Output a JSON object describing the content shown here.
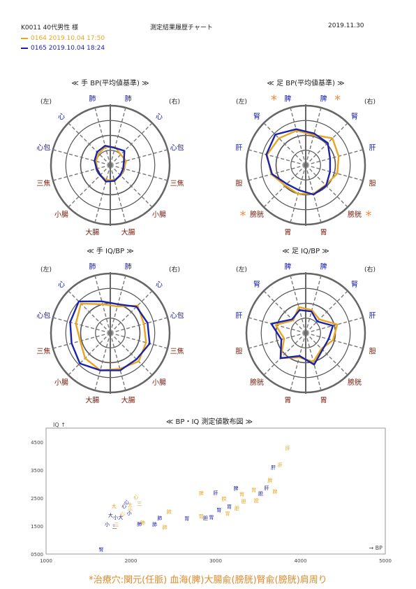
{
  "header": {
    "id_label": "K0011 40代男性 様",
    "title": "測定結果履歴チャート",
    "date": "2019.11.30"
  },
  "legend": [
    {
      "text": "0164 2019.10.04 17:50",
      "color": "#e8a521"
    },
    {
      "text": "0165 2019.10.04 18:24",
      "color": "#1b23a8"
    }
  ],
  "colors": {
    "orange": "#e8a521",
    "blue": "#1b23a8",
    "red": "#7a1a0a",
    "star": "#f08a3c"
  },
  "chart_data": [
    {
      "type": "radar",
      "title": "≪ 手 BP(平均値基準) ≫",
      "side_left": "(左)",
      "side_right": "(右)",
      "axes": [
        "肺",
        "心",
        "心包",
        "三焦",
        "小腸",
        "大腸",
        "大腸",
        "小腸",
        "三焦",
        "心包",
        "心",
        "肺"
      ],
      "label_colors": [
        "blue",
        "blue",
        "blue",
        "red",
        "red",
        "red",
        "red",
        "red",
        "red",
        "blue",
        "blue",
        "blue"
      ],
      "ring_max": 4,
      "series": [
        {
          "color": "orange",
          "values": [
            1.25,
            1.1,
            1.0,
            0.9,
            0.95,
            1.05,
            1.05,
            1.0,
            0.95,
            1.1,
            1.0,
            1.25
          ]
        },
        {
          "color": "blue",
          "values": [
            1.35,
            1.25,
            1.1,
            0.95,
            0.95,
            1.15,
            1.1,
            0.95,
            0.9,
            0.95,
            1.35,
            1.2
          ]
        }
      ]
    },
    {
      "type": "radar",
      "title": "≪ 足 BP(平均値基準) ≫",
      "side_left": "(左)",
      "side_right": "(右)",
      "axes": [
        "脾",
        "腎",
        "肝",
        "胆",
        "膀胱",
        "胃",
        "胃",
        "膀胱",
        "胆",
        "肝",
        "腎",
        "脾"
      ],
      "label_colors": [
        "blue",
        "blue",
        "blue",
        "red",
        "red",
        "red",
        "red",
        "red",
        "red",
        "blue",
        "blue",
        "blue"
      ],
      "starred": [
        0,
        4,
        7,
        11
      ],
      "ring_max": 4,
      "series": [
        {
          "color": "orange",
          "values": [
            2.4,
            2.55,
            2.7,
            2.4,
            1.95,
            2.0,
            2.0,
            1.9,
            2.2,
            2.3,
            2.55,
            2.1
          ]
        },
        {
          "color": "blue",
          "values": [
            2.5,
            2.9,
            2.75,
            2.35,
            1.8,
            1.75,
            2.05,
            1.95,
            1.7,
            1.7,
            2.1,
            2.2
          ]
        }
      ]
    },
    {
      "type": "radar",
      "title": "≪ 手 IQ/BP ≫",
      "side_left": "(左)",
      "side_right": "(右)",
      "axes": [
        "肺",
        "心",
        "心包",
        "三焦",
        "小腸",
        "大腸",
        "大腸",
        "小腸",
        "三焦",
        "心包",
        "心",
        "肺"
      ],
      "label_colors": [
        "blue",
        "blue",
        "blue",
        "red",
        "red",
        "red",
        "red",
        "red",
        "red",
        "blue",
        "blue",
        "blue"
      ],
      "ring_max": 4,
      "series": [
        {
          "color": "orange",
          "values": [
            2.0,
            2.8,
            2.4,
            2.1,
            2.4,
            2.6,
            2.5,
            2.7,
            2.5,
            2.35,
            2.6,
            1.85
          ]
        },
        {
          "color": "blue",
          "values": [
            2.2,
            3.0,
            2.8,
            2.7,
            2.9,
            2.6,
            2.6,
            2.5,
            2.75,
            2.6,
            2.5,
            2.0
          ]
        }
      ]
    },
    {
      "type": "radar",
      "title": "≪ 足 IQ/BP ≫",
      "side_left": "(左)",
      "side_right": "(右)",
      "axes": [
        "脾",
        "腎",
        "肝",
        "胆",
        "膀胱",
        "胃",
        "胃",
        "膀胱",
        "胆",
        "肝",
        "腎",
        "脾"
      ],
      "label_colors": [
        "blue",
        "blue",
        "blue",
        "red",
        "red",
        "red",
        "red",
        "red",
        "red",
        "blue",
        "blue",
        "blue"
      ],
      "ring_max": 4,
      "series": [
        {
          "color": "orange",
          "values": [
            1.8,
            1.2,
            2.1,
            1.5,
            2.4,
            1.7,
            2.0,
            1.5,
            1.9,
            2.2,
            1.3,
            1.6
          ]
        },
        {
          "color": "blue",
          "values": [
            1.6,
            1.3,
            2.4,
            1.7,
            2.4,
            1.6,
            2.2,
            1.6,
            1.6,
            1.9,
            1.1,
            1.5
          ]
        }
      ]
    },
    {
      "type": "scatter",
      "title": "≪ BP・IQ 測定値散布図 ≫",
      "xlabel": "→ BP",
      "ylabel": "IQ ↑",
      "xlim": [
        1000,
        5000
      ],
      "ylim": [
        500,
        5000
      ],
      "xticks": [
        "1000",
        "2000",
        "3000",
        "4000",
        "5000"
      ],
      "yticks": [
        "0500",
        "1500",
        "2500",
        "3500",
        "4500"
      ],
      "points": [
        {
          "label": "肝",
          "x": 3850,
          "y": 4300,
          "color": "orange"
        },
        {
          "label": "肝",
          "x": 3760,
          "y": 3700,
          "color": "orange"
        },
        {
          "label": "肝",
          "x": 3680,
          "y": 3610,
          "color": "blue"
        },
        {
          "label": "脾",
          "x": 3640,
          "y": 3150,
          "color": "orange"
        },
        {
          "label": "肝",
          "x": 3600,
          "y": 2880,
          "color": "blue"
        },
        {
          "label": "脾",
          "x": 3700,
          "y": 2750,
          "color": "orange"
        },
        {
          "label": "胆",
          "x": 3530,
          "y": 2680,
          "color": "blue"
        },
        {
          "label": "胃",
          "x": 3450,
          "y": 2800,
          "color": "orange"
        },
        {
          "label": "脾",
          "x": 3240,
          "y": 2860,
          "color": "blue"
        },
        {
          "label": "腎",
          "x": 3310,
          "y": 2650,
          "color": "orange"
        },
        {
          "label": "膀",
          "x": 3480,
          "y": 2420,
          "color": "orange"
        },
        {
          "label": "胆",
          "x": 3330,
          "y": 2400,
          "color": "orange"
        },
        {
          "label": "膀",
          "x": 3100,
          "y": 2490,
          "color": "orange"
        },
        {
          "label": "胃",
          "x": 3160,
          "y": 2210,
          "color": "blue"
        },
        {
          "label": "胆",
          "x": 3250,
          "y": 2150,
          "color": "orange"
        },
        {
          "label": "肝",
          "x": 3000,
          "y": 2700,
          "color": "blue"
        },
        {
          "label": "脾",
          "x": 2830,
          "y": 2690,
          "color": "orange"
        },
        {
          "label": "腎",
          "x": 3040,
          "y": 2090,
          "color": "blue"
        },
        {
          "label": "胃",
          "x": 3140,
          "y": 1960,
          "color": "orange"
        },
        {
          "label": "胃",
          "x": 2950,
          "y": 1830,
          "color": "blue"
        },
        {
          "label": "腎",
          "x": 2830,
          "y": 1860,
          "color": "orange"
        },
        {
          "label": "胆",
          "x": 2880,
          "y": 1800,
          "color": "blue"
        },
        {
          "label": "胃",
          "x": 2660,
          "y": 1790,
          "color": "blue"
        },
        {
          "label": "肺",
          "x": 2450,
          "y": 2030,
          "color": "orange"
        },
        {
          "label": "肺",
          "x": 2340,
          "y": 1800,
          "color": "blue"
        },
        {
          "label": "肺",
          "x": 2400,
          "y": 1480,
          "color": "orange"
        },
        {
          "label": "肺",
          "x": 2280,
          "y": 1580,
          "color": "blue"
        },
        {
          "label": "肺",
          "x": 2140,
          "y": 1640,
          "color": "orange"
        },
        {
          "label": "肺",
          "x": 2100,
          "y": 1590,
          "color": "blue"
        },
        {
          "label": "心",
          "x": 2060,
          "y": 2560,
          "color": "orange"
        },
        {
          "label": "三",
          "x": 2100,
          "y": 2330,
          "color": "orange"
        },
        {
          "label": "大",
          "x": 1990,
          "y": 2260,
          "color": "orange"
        },
        {
          "label": "心",
          "x": 1950,
          "y": 2380,
          "color": "blue"
        },
        {
          "label": "心",
          "x": 1920,
          "y": 2240,
          "color": "blue"
        },
        {
          "label": "大",
          "x": 1800,
          "y": 2220,
          "color": "orange"
        },
        {
          "label": "小",
          "x": 1990,
          "y": 2100,
          "color": "orange"
        },
        {
          "label": "小",
          "x": 1980,
          "y": 1980,
          "color": "blue"
        },
        {
          "label": "心",
          "x": 1900,
          "y": 1950,
          "color": "orange"
        },
        {
          "label": "大",
          "x": 1760,
          "y": 1900,
          "color": "blue"
        },
        {
          "label": "大",
          "x": 1880,
          "y": 1820,
          "color": "blue"
        },
        {
          "label": "小",
          "x": 1820,
          "y": 1820,
          "color": "blue"
        },
        {
          "label": "小",
          "x": 1720,
          "y": 1580,
          "color": "blue"
        },
        {
          "label": "三",
          "x": 1810,
          "y": 1500,
          "color": "blue"
        },
        {
          "label": "三",
          "x": 1830,
          "y": 1560,
          "color": "orange"
        },
        {
          "label": "腎",
          "x": 1650,
          "y": 680,
          "color": "blue"
        }
      ]
    }
  ],
  "footer": "*治療穴:関元(任脈) 血海(脾)大腸兪(膀胱)腎兪(膀胱)肩周り"
}
